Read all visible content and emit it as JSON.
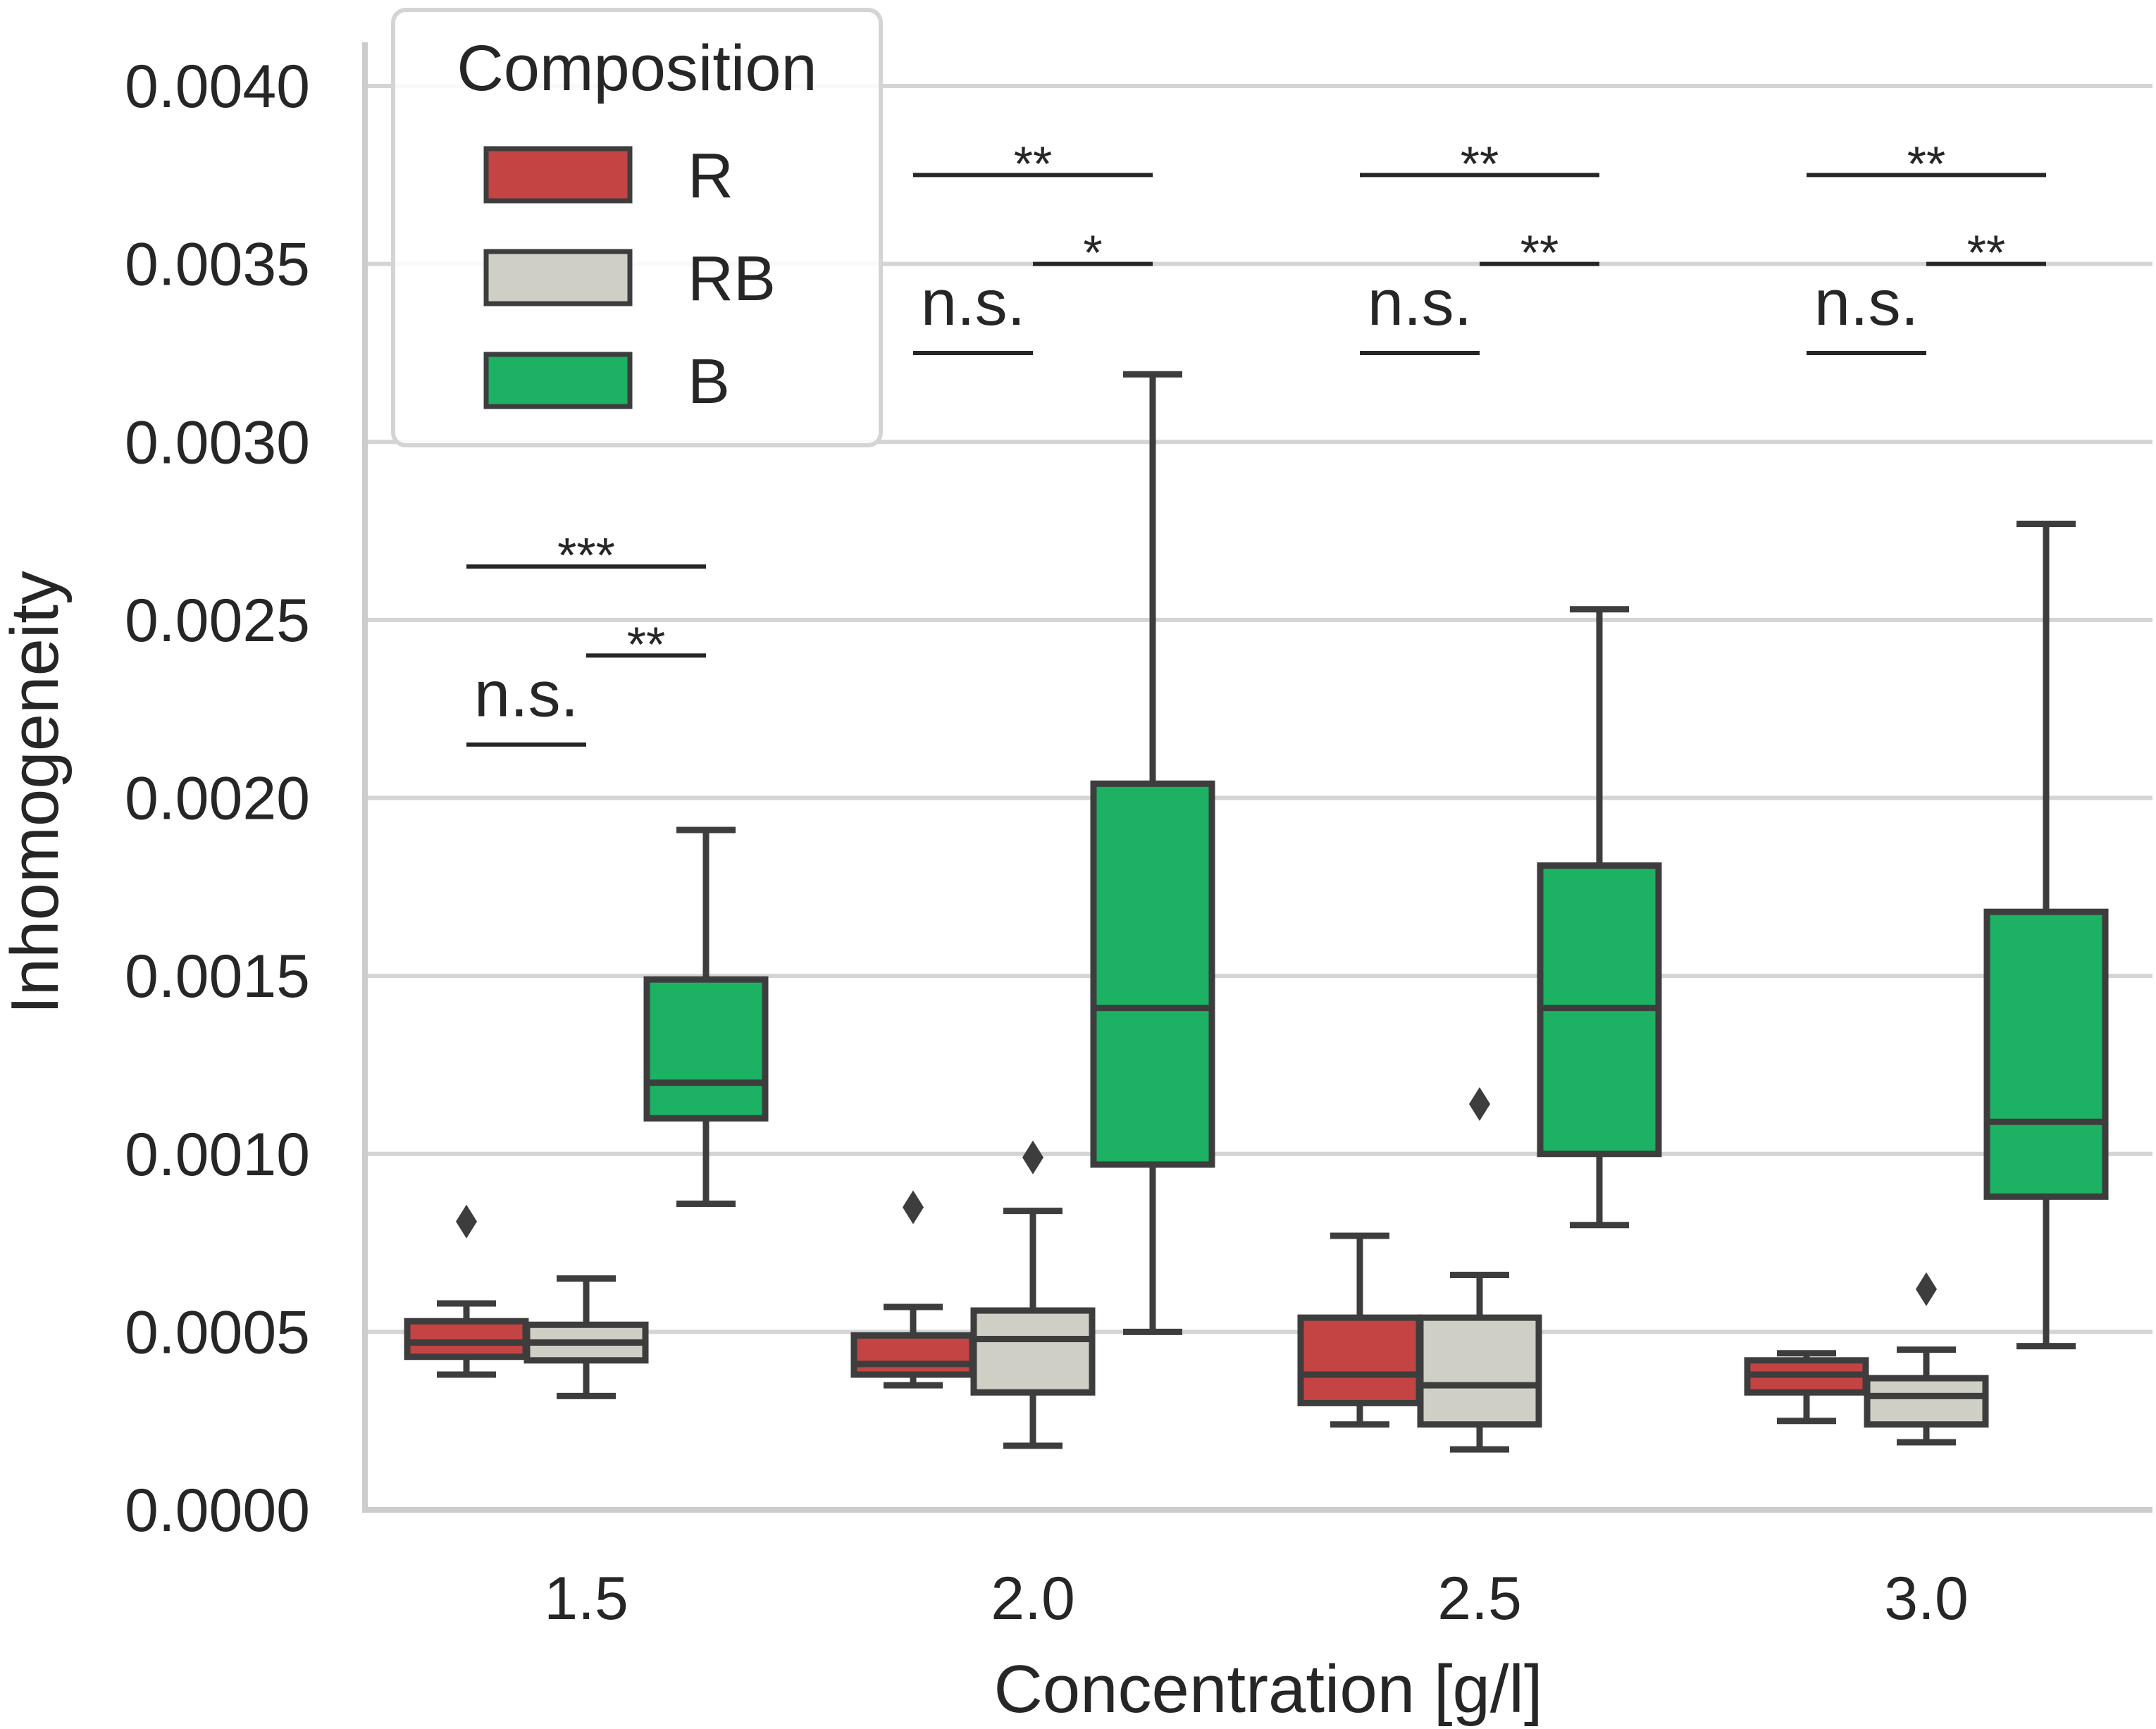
{
  "chart_data": {
    "type": "box",
    "xlabel": "Concentration [g/l]",
    "ylabel": "Inhomogeneity",
    "ylim": [
      0.0,
      0.00415
    ],
    "yticks": [
      "0.0000",
      "0.0005",
      "0.0010",
      "0.0015",
      "0.0020",
      "0.0025",
      "0.0030",
      "0.0035",
      "0.0040"
    ],
    "ytick_values": [
      0.0,
      0.0005,
      0.001,
      0.0015,
      0.002,
      0.0025,
      0.003,
      0.0035,
      0.004
    ],
    "categories": [
      "1.5",
      "2.0",
      "2.5",
      "3.0"
    ],
    "grid": "horizontal",
    "legend": {
      "title": "Composition",
      "position": "top-left",
      "entries": [
        {
          "name": "R",
          "color": "#c44444"
        },
        {
          "name": "RB",
          "color": "#cfcfc6"
        },
        {
          "name": "B",
          "color": "#1cb163"
        }
      ]
    },
    "series": [
      {
        "name": "R",
        "color": "#c44444",
        "boxes": [
          {
            "whislo": 0.00038,
            "q1": 0.00043,
            "med": 0.00047,
            "q3": 0.00053,
            "whishi": 0.00058,
            "fliers": [
              0.00081
            ]
          },
          {
            "whislo": 0.00035,
            "q1": 0.00038,
            "med": 0.00041,
            "q3": 0.00049,
            "whishi": 0.00057,
            "fliers": [
              0.00085
            ]
          },
          {
            "whislo": 0.00024,
            "q1": 0.0003,
            "med": 0.00038,
            "q3": 0.00054,
            "whishi": 0.00077,
            "fliers": []
          },
          {
            "whislo": 0.00025,
            "q1": 0.00033,
            "med": 0.00038,
            "q3": 0.00042,
            "whishi": 0.00044,
            "fliers": []
          }
        ]
      },
      {
        "name": "RB",
        "color": "#cfcfc6",
        "boxes": [
          {
            "whislo": 0.00032,
            "q1": 0.00042,
            "med": 0.00047,
            "q3": 0.00052,
            "whishi": 0.00065,
            "fliers": []
          },
          {
            "whislo": 0.00018,
            "q1": 0.00033,
            "med": 0.00048,
            "q3": 0.00056,
            "whishi": 0.00084,
            "fliers": [
              0.00099
            ]
          },
          {
            "whislo": 0.00017,
            "q1": 0.00024,
            "med": 0.00035,
            "q3": 0.00054,
            "whishi": 0.00066,
            "fliers": [
              0.00114
            ]
          },
          {
            "whislo": 0.00019,
            "q1": 0.00024,
            "med": 0.00032,
            "q3": 0.00037,
            "whishi": 0.00045,
            "fliers": [
              0.00062
            ]
          }
        ]
      },
      {
        "name": "B",
        "color": "#1cb163",
        "boxes": [
          {
            "whislo": 0.00086,
            "q1": 0.0011,
            "med": 0.0012,
            "q3": 0.00149,
            "whishi": 0.00191,
            "fliers": []
          },
          {
            "whislo": 0.0005,
            "q1": 0.00097,
            "med": 0.00141,
            "q3": 0.00204,
            "whishi": 0.00319,
            "fliers": []
          },
          {
            "whislo": 0.0008,
            "q1": 0.001,
            "med": 0.00141,
            "q3": 0.00181,
            "whishi": 0.00253,
            "fliers": []
          },
          {
            "whislo": 0.00046,
            "q1": 0.00088,
            "med": 0.00109,
            "q3": 0.00168,
            "whishi": 0.00277,
            "fliers": []
          }
        ]
      }
    ],
    "annotations": [
      {
        "group": 0,
        "from": "R",
        "to": "B",
        "y": 0.00265,
        "label": "***"
      },
      {
        "group": 0,
        "from": "RB",
        "to": "B",
        "y": 0.0024,
        "label": "**"
      },
      {
        "group": 0,
        "from": "R",
        "to": "RB",
        "y": 0.00215,
        "label": "n.s."
      },
      {
        "group": 1,
        "from": "R",
        "to": "B",
        "y": 0.00375,
        "label": "**"
      },
      {
        "group": 1,
        "from": "RB",
        "to": "B",
        "y": 0.0035,
        "label": "*"
      },
      {
        "group": 1,
        "from": "R",
        "to": "RB",
        "y": 0.00325,
        "label": "n.s."
      },
      {
        "group": 2,
        "from": "R",
        "to": "B",
        "y": 0.00375,
        "label": "**"
      },
      {
        "group": 2,
        "from": "RB",
        "to": "B",
        "y": 0.0035,
        "label": "**"
      },
      {
        "group": 2,
        "from": "R",
        "to": "RB",
        "y": 0.00325,
        "label": "n.s."
      },
      {
        "group": 3,
        "from": "R",
        "to": "B",
        "y": 0.00375,
        "label": "**"
      },
      {
        "group": 3,
        "from": "RB",
        "to": "B",
        "y": 0.0035,
        "label": "**"
      },
      {
        "group": 3,
        "from": "R",
        "to": "RB",
        "y": 0.00325,
        "label": "n.s."
      }
    ]
  }
}
